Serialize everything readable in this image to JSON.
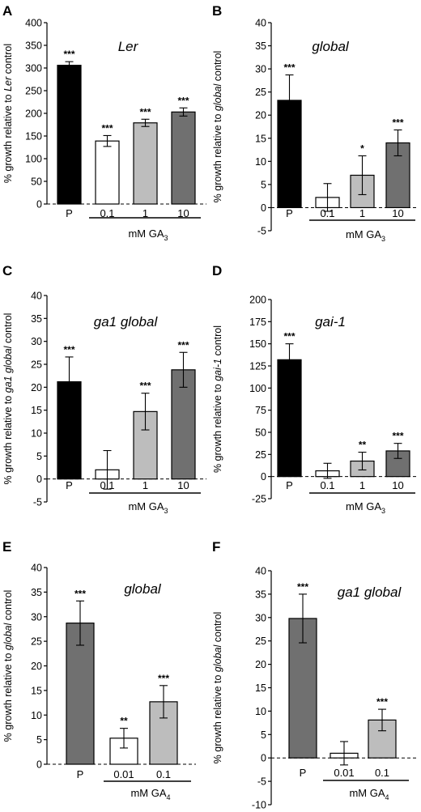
{
  "colors": {
    "P": "#000000",
    "0.1": "#ffffff",
    "1": "#bdbdbd",
    "10": "#707070",
    "gray": "#707070",
    "white": "#ffffff",
    "lightgray": "#bdbdbd"
  },
  "chart_data": [
    {
      "type": "bar",
      "panel": "A",
      "title_parts": [
        {
          "text": "L",
          "italic": true
        },
        {
          "text": "er",
          "italic": true
        }
      ],
      "ylabel_parts": [
        {
          "text": "% growth relative to "
        },
        {
          "text": "Ler",
          "italic": true
        },
        {
          "text": " control"
        }
      ],
      "categories": [
        "P",
        "0.1",
        "1",
        "10"
      ],
      "values": [
        306,
        139,
        179,
        203
      ],
      "errors": [
        8,
        12,
        8,
        9
      ],
      "significance": [
        "***",
        "***",
        "***",
        "***"
      ],
      "bar_colors": [
        "#000000",
        "#ffffff",
        "#bdbdbd",
        "#707070"
      ],
      "ylim": [
        0,
        400
      ],
      "yticks": [
        0,
        50,
        100,
        150,
        200,
        250,
        300,
        350,
        400
      ],
      "treatment_label": "mM GA",
      "treatment_sub": "3",
      "underline_from": 1
    },
    {
      "type": "bar",
      "panel": "B",
      "title_parts": [
        {
          "text": "global",
          "italic": true
        }
      ],
      "ylabel_parts": [
        {
          "text": "% growth relative to "
        },
        {
          "text": "global",
          "italic": true
        },
        {
          "text": " control"
        }
      ],
      "categories": [
        "P",
        "0.1",
        "1",
        "10"
      ],
      "values": [
        23.2,
        2.2,
        7,
        14
      ],
      "errors": [
        5.5,
        3,
        4.2,
        2.8
      ],
      "significance": [
        "***",
        "",
        "*",
        "***"
      ],
      "bar_colors": [
        "#000000",
        "#ffffff",
        "#bdbdbd",
        "#707070"
      ],
      "ylim": [
        -5,
        40
      ],
      "yticks": [
        -5,
        0,
        5,
        10,
        15,
        20,
        25,
        30,
        35,
        40
      ],
      "treatment_label": "mM GA",
      "treatment_sub": "3",
      "underline_from": 1
    },
    {
      "type": "bar",
      "panel": "C",
      "title_parts": [
        {
          "text": "ga1 global",
          "italic": true
        }
      ],
      "ylabel_parts": [
        {
          "text": "% growth relative to "
        },
        {
          "text": "ga1 global",
          "italic": true
        },
        {
          "text": " control"
        }
      ],
      "categories": [
        "P",
        "0.1",
        "1",
        "10"
      ],
      "values": [
        21.2,
        2,
        14.7,
        23.8
      ],
      "errors": [
        5.4,
        4.2,
        4,
        3.8
      ],
      "significance": [
        "***",
        "",
        "***",
        "***"
      ],
      "bar_colors": [
        "#000000",
        "#ffffff",
        "#bdbdbd",
        "#707070"
      ],
      "ylim": [
        -5,
        40
      ],
      "yticks": [
        -5,
        0,
        5,
        10,
        15,
        20,
        25,
        30,
        35,
        40
      ],
      "treatment_label": "mM GA",
      "treatment_sub": "3",
      "underline_from": 1
    },
    {
      "type": "bar",
      "panel": "D",
      "title_parts": [
        {
          "text": "gai-1",
          "italic": true
        }
      ],
      "ylabel_parts": [
        {
          "text": "% growth relative to "
        },
        {
          "text": "gai-1",
          "italic": true
        },
        {
          "text": " control"
        }
      ],
      "categories": [
        "P",
        "0.1",
        "1",
        "10"
      ],
      "values": [
        132,
        6.5,
        17.5,
        29
      ],
      "errors": [
        18,
        8.5,
        10,
        8.5
      ],
      "significance": [
        "***",
        "",
        "**",
        "***"
      ],
      "bar_colors": [
        "#000000",
        "#ffffff",
        "#bdbdbd",
        "#707070"
      ],
      "ylim": [
        -25,
        200
      ],
      "yticks": [
        -25,
        0,
        25,
        50,
        75,
        100,
        125,
        150,
        175,
        200
      ],
      "treatment_label": "mM GA",
      "treatment_sub": "3",
      "underline_from": 1
    },
    {
      "type": "bar",
      "panel": "E",
      "title_parts": [
        {
          "text": "global",
          "italic": true
        }
      ],
      "ylabel_parts": [
        {
          "text": "% growth relative to "
        },
        {
          "text": "global",
          "italic": true
        },
        {
          "text": " control"
        }
      ],
      "categories": [
        "P",
        "0.01",
        "0.1"
      ],
      "values": [
        28.7,
        5.3,
        12.7
      ],
      "errors": [
        4.5,
        2,
        3.3
      ],
      "significance": [
        "***",
        "**",
        "***"
      ],
      "bar_colors": [
        "#707070",
        "#ffffff",
        "#bdbdbd"
      ],
      "ylim": [
        0,
        40
      ],
      "yticks": [
        0,
        5,
        10,
        15,
        20,
        25,
        30,
        35,
        40
      ],
      "treatment_label": "mM GA",
      "treatment_sub": "4",
      "underline_from": 1
    },
    {
      "type": "bar",
      "panel": "F",
      "title_parts": [
        {
          "text": "ga1 global",
          "italic": true
        }
      ],
      "ylabel_parts": [
        {
          "text": "% growth relative to "
        },
        {
          "text": "global",
          "italic": true
        },
        {
          "text": " control"
        }
      ],
      "categories": [
        "P",
        "0.01",
        "0.1"
      ],
      "values": [
        29.8,
        1,
        8.1
      ],
      "errors": [
        5.2,
        2.5,
        2.3
      ],
      "significance": [
        "***",
        "",
        "***"
      ],
      "bar_colors": [
        "#707070",
        "#ffffff",
        "#bdbdbd"
      ],
      "ylim": [
        -10,
        40
      ],
      "yticks": [
        -10,
        -5,
        0,
        5,
        10,
        15,
        20,
        25,
        30,
        35,
        40
      ],
      "treatment_label": "mM GA",
      "treatment_sub": "4",
      "underline_from": 1
    }
  ]
}
